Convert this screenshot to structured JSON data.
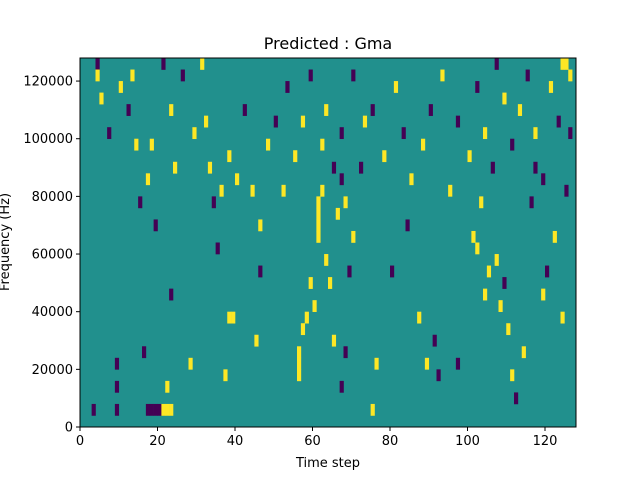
{
  "chart_data": {
    "type": "heatmap",
    "title": "Predicted : Gma",
    "xlabel": "Time step",
    "ylabel": "Frequency (Hz)",
    "xlim": [
      0,
      128
    ],
    "ylim": [
      0,
      128000
    ],
    "x_ticks": [
      0,
      20,
      40,
      60,
      80,
      100,
      120
    ],
    "y_ticks": [
      0,
      20000,
      40000,
      60000,
      80000,
      100000,
      120000
    ],
    "y_tick_labels": [
      "0",
      "20000",
      "40000",
      "60000",
      "80000",
      "100000",
      "120000"
    ],
    "grid": false,
    "background_value": 0.5,
    "colors": {
      "low": "#440154",
      "mid": "#21908d",
      "high": "#fde725"
    },
    "cell_height_hz": 4000,
    "cells": [
      [
        3,
        1,
        0
      ],
      [
        9,
        1,
        0
      ],
      [
        9,
        3,
        0
      ],
      [
        9,
        5,
        0
      ],
      [
        17,
        1,
        0
      ],
      [
        18,
        1,
        0
      ],
      [
        19,
        1,
        0
      ],
      [
        20,
        1,
        0
      ],
      [
        21,
        1,
        1
      ],
      [
        22,
        1,
        1
      ],
      [
        23,
        1,
        1
      ],
      [
        22,
        3,
        1
      ],
      [
        16,
        6,
        0
      ],
      [
        23,
        11,
        0
      ],
      [
        28,
        5,
        1
      ],
      [
        37,
        4,
        1
      ],
      [
        38,
        9,
        1
      ],
      [
        39,
        9,
        1
      ],
      [
        45,
        7,
        1
      ],
      [
        46,
        13,
        0
      ],
      [
        56,
        4,
        1
      ],
      [
        56,
        5,
        1
      ],
      [
        56,
        6,
        1
      ],
      [
        57,
        8,
        1
      ],
      [
        58,
        9,
        1
      ],
      [
        59,
        12,
        1
      ],
      [
        60,
        10,
        1
      ],
      [
        61,
        16,
        1
      ],
      [
        61,
        17,
        1
      ],
      [
        61,
        18,
        1
      ],
      [
        61,
        19,
        1
      ],
      [
        62,
        20,
        1
      ],
      [
        63,
        14,
        1
      ],
      [
        64,
        12,
        1
      ],
      [
        65,
        7,
        1
      ],
      [
        66,
        18,
        1
      ],
      [
        67,
        21,
        0
      ],
      [
        67,
        3,
        0
      ],
      [
        68,
        6,
        0
      ],
      [
        69,
        13,
        0
      ],
      [
        70,
        16,
        1
      ],
      [
        72,
        22,
        0
      ],
      [
        75,
        1,
        1
      ],
      [
        76,
        5,
        1
      ],
      [
        80,
        13,
        0
      ],
      [
        84,
        17,
        0
      ],
      [
        87,
        9,
        1
      ],
      [
        89,
        5,
        1
      ],
      [
        91,
        7,
        0
      ],
      [
        92,
        4,
        0
      ],
      [
        97,
        5,
        0
      ],
      [
        101,
        16,
        1
      ],
      [
        102,
        15,
        1
      ],
      [
        103,
        19,
        1
      ],
      [
        104,
        11,
        1
      ],
      [
        105,
        13,
        1
      ],
      [
        107,
        14,
        1
      ],
      [
        108,
        10,
        1
      ],
      [
        109,
        12,
        0
      ],
      [
        110,
        8,
        1
      ],
      [
        111,
        4,
        1
      ],
      [
        112,
        2,
        0
      ],
      [
        114,
        6,
        1
      ],
      [
        116,
        19,
        0
      ],
      [
        117,
        22,
        0
      ],
      [
        119,
        11,
        1
      ],
      [
        120,
        13,
        0
      ],
      [
        122,
        16,
        1
      ],
      [
        124,
        9,
        1
      ],
      [
        125,
        20,
        0
      ],
      [
        126,
        25,
        0
      ],
      [
        4,
        31,
        0
      ],
      [
        4,
        30,
        1
      ],
      [
        5,
        28,
        1
      ],
      [
        7,
        25,
        0
      ],
      [
        10,
        29,
        1
      ],
      [
        12,
        27,
        0
      ],
      [
        13,
        30,
        1
      ],
      [
        14,
        24,
        1
      ],
      [
        15,
        19,
        0
      ],
      [
        17,
        21,
        1
      ],
      [
        18,
        24,
        1
      ],
      [
        19,
        17,
        0
      ],
      [
        21,
        31,
        0
      ],
      [
        23,
        27,
        1
      ],
      [
        24,
        22,
        1
      ],
      [
        26,
        30,
        0
      ],
      [
        29,
        25,
        1
      ],
      [
        31,
        31,
        1
      ],
      [
        32,
        26,
        1
      ],
      [
        33,
        22,
        1
      ],
      [
        34,
        19,
        0
      ],
      [
        35,
        15,
        0
      ],
      [
        36,
        20,
        1
      ],
      [
        38,
        23,
        1
      ],
      [
        40,
        21,
        1
      ],
      [
        42,
        27,
        0
      ],
      [
        44,
        20,
        1
      ],
      [
        46,
        17,
        1
      ],
      [
        48,
        24,
        1
      ],
      [
        50,
        26,
        0
      ],
      [
        52,
        20,
        1
      ],
      [
        53,
        29,
        0
      ],
      [
        55,
        23,
        1
      ],
      [
        57,
        26,
        1
      ],
      [
        59,
        30,
        0
      ],
      [
        62,
        24,
        1
      ],
      [
        63,
        27,
        1
      ],
      [
        65,
        22,
        0
      ],
      [
        67,
        25,
        0
      ],
      [
        68,
        19,
        1
      ],
      [
        70,
        30,
        0
      ],
      [
        73,
        26,
        1
      ],
      [
        75,
        27,
        0
      ],
      [
        78,
        23,
        1
      ],
      [
        81,
        29,
        1
      ],
      [
        83,
        25,
        0
      ],
      [
        85,
        21,
        1
      ],
      [
        88,
        24,
        1
      ],
      [
        90,
        27,
        0
      ],
      [
        93,
        30,
        1
      ],
      [
        95,
        20,
        1
      ],
      [
        97,
        26,
        0
      ],
      [
        100,
        23,
        1
      ],
      [
        102,
        29,
        0
      ],
      [
        104,
        25,
        1
      ],
      [
        106,
        22,
        0
      ],
      [
        107,
        31,
        0
      ],
      [
        109,
        28,
        1
      ],
      [
        111,
        24,
        0
      ],
      [
        113,
        27,
        1
      ],
      [
        115,
        30,
        0
      ],
      [
        117,
        25,
        1
      ],
      [
        119,
        21,
        0
      ],
      [
        121,
        29,
        1
      ],
      [
        123,
        26,
        0
      ],
      [
        124,
        31,
        1
      ],
      [
        125,
        31,
        1
      ],
      [
        126,
        30,
        1
      ]
    ]
  }
}
